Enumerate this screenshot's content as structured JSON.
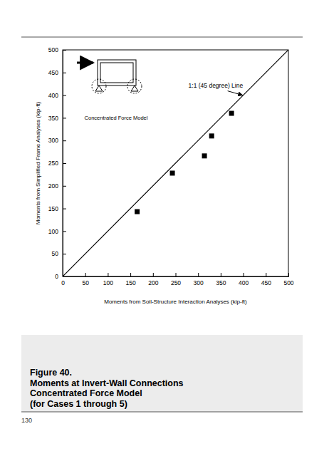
{
  "chart_data": {
    "type": "scatter",
    "x_label": "Moments from Soil-Structure Interaction Analyses (kip-ft)",
    "y_label": "Moments from Simplified Frame Analyses (kip-ft)",
    "annotations": [
      "Concentrated Force Model"
    ],
    "series": [
      {
        "type": "scatter",
        "marker": "square",
        "color": "#000000",
        "x": [
          165,
          243,
          314,
          330,
          374
        ],
        "values": [
          143,
          228,
          266,
          310,
          360
        ]
      },
      {
        "name": "1:1 (45 degree) Line",
        "type": "line",
        "line_style": "solid",
        "color": "#000000",
        "x": [
          0,
          500
        ],
        "values": [
          0,
          500
        ]
      }
    ],
    "xlim": [
      0,
      500
    ],
    "ylim": [
      0,
      500
    ],
    "xticks": [
      0,
      50,
      100,
      150,
      200,
      250,
      300,
      350,
      400,
      450,
      500
    ],
    "yticks": [
      0,
      50,
      100,
      150,
      200,
      250,
      300,
      350,
      400,
      450,
      500
    ],
    "grid": false
  },
  "caption": [
    "Figure 40.",
    "Moments at Invert-Wall Connections",
    "Concentrated Force Model",
    "(for Cases 1 through 5)"
  ],
  "page_number": 130
}
